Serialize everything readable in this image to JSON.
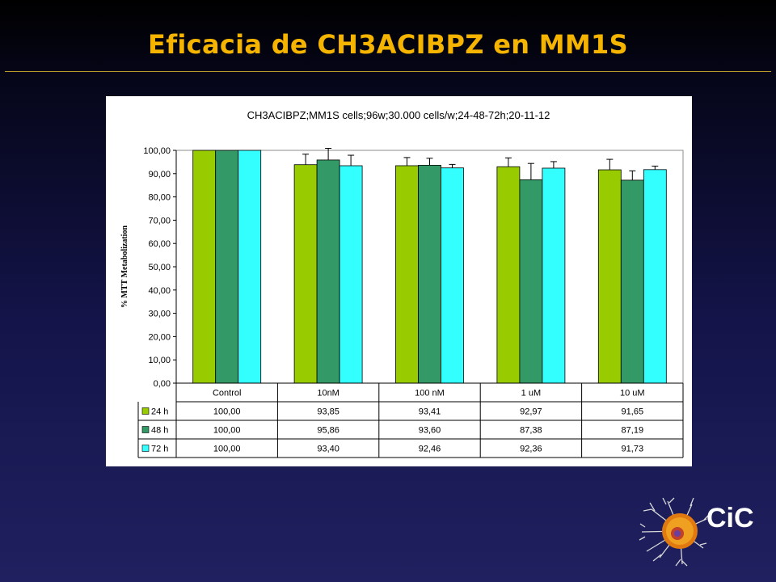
{
  "slide": {
    "title": "Eficacia de CH3ACIBPZ en MM1S",
    "logo_text": "CiC",
    "colors": {
      "title": "#f5b400",
      "accent_rule": "#b89a2a"
    }
  },
  "chart_data": {
    "type": "bar",
    "title": "CH3ACIBPZ;MM1S cells;96w;30.000 cells/w;24-48-72h;20-11-12",
    "xlabel": "",
    "ylabel": "% MTT Metabolization",
    "ylim": [
      0,
      100
    ],
    "yticks": [
      "0,00",
      "10,00",
      "20,00",
      "30,00",
      "40,00",
      "50,00",
      "60,00",
      "70,00",
      "80,00",
      "90,00",
      "100,00"
    ],
    "grid": false,
    "legend": "data-table",
    "categories": [
      "Control",
      "10nM",
      "100 nM",
      "1 uM",
      "10 uM"
    ],
    "series": [
      {
        "name": "24 h",
        "color": "#99cc00",
        "values": [
          100.0,
          93.85,
          93.41,
          92.97,
          91.65
        ],
        "labels": [
          "100,00",
          "93,85",
          "93,41",
          "92,97",
          "91,65"
        ],
        "errors": [
          0,
          4.5,
          3.5,
          3.8,
          4.5
        ]
      },
      {
        "name": "48 h",
        "color": "#339966",
        "values": [
          100.0,
          95.86,
          93.6,
          87.38,
          87.19
        ],
        "labels": [
          "100,00",
          "95,86",
          "93,60",
          "87,38",
          "87,19"
        ],
        "errors": [
          0,
          5.0,
          3.0,
          7.0,
          4.0
        ]
      },
      {
        "name": "72 h",
        "color": "#33ffff",
        "values": [
          100.0,
          93.4,
          92.46,
          92.36,
          91.73
        ],
        "labels": [
          "100,00",
          "93,40",
          "92,46",
          "92,36",
          "91,73"
        ],
        "errors": [
          0,
          4.5,
          1.5,
          2.8,
          1.5
        ]
      }
    ]
  }
}
